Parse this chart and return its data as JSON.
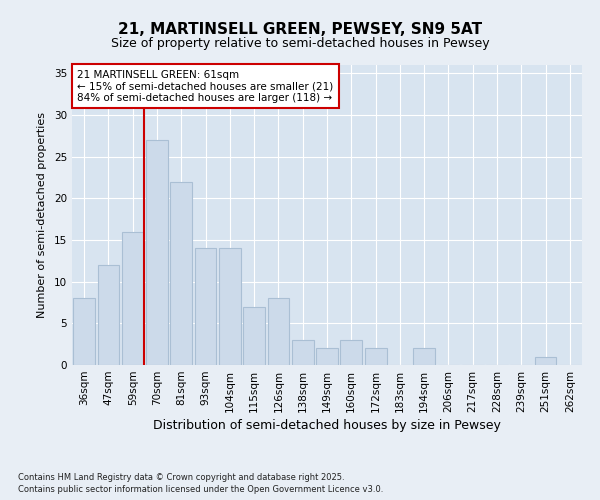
{
  "title1": "21, MARTINSELL GREEN, PEWSEY, SN9 5AT",
  "title2": "Size of property relative to semi-detached houses in Pewsey",
  "xlabel": "Distribution of semi-detached houses by size in Pewsey",
  "ylabel": "Number of semi-detached properties",
  "categories": [
    "36sqm",
    "47sqm",
    "59sqm",
    "70sqm",
    "81sqm",
    "93sqm",
    "104sqm",
    "115sqm",
    "126sqm",
    "138sqm",
    "149sqm",
    "160sqm",
    "172sqm",
    "183sqm",
    "194sqm",
    "206sqm",
    "217sqm",
    "228sqm",
    "239sqm",
    "251sqm",
    "262sqm"
  ],
  "values": [
    8,
    12,
    16,
    27,
    22,
    14,
    14,
    7,
    8,
    3,
    2,
    3,
    2,
    0,
    2,
    0,
    0,
    0,
    0,
    1,
    0
  ],
  "bar_color": "#ccdaea",
  "bar_edgecolor": "#aabfd4",
  "vline_x_idx": 2,
  "vline_color": "#cc0000",
  "annotation_title": "21 MARTINSELL GREEN: 61sqm",
  "annotation_line1": "← 15% of semi-detached houses are smaller (21)",
  "annotation_line2": "84% of semi-detached houses are larger (118) →",
  "annotation_box_edgecolor": "#cc0000",
  "ylim": [
    0,
    36
  ],
  "yticks": [
    0,
    5,
    10,
    15,
    20,
    25,
    30,
    35
  ],
  "footnote1": "Contains HM Land Registry data © Crown copyright and database right 2025.",
  "footnote2": "Contains public sector information licensed under the Open Government Licence v3.0.",
  "bg_color": "#e8eef5",
  "plot_bg_color": "#d8e4f0",
  "grid_color": "#ffffff",
  "title1_fontsize": 11,
  "title2_fontsize": 9,
  "xlabel_fontsize": 9,
  "ylabel_fontsize": 8,
  "tick_fontsize": 7.5,
  "annot_fontsize": 7.5,
  "footnote_fontsize": 6
}
